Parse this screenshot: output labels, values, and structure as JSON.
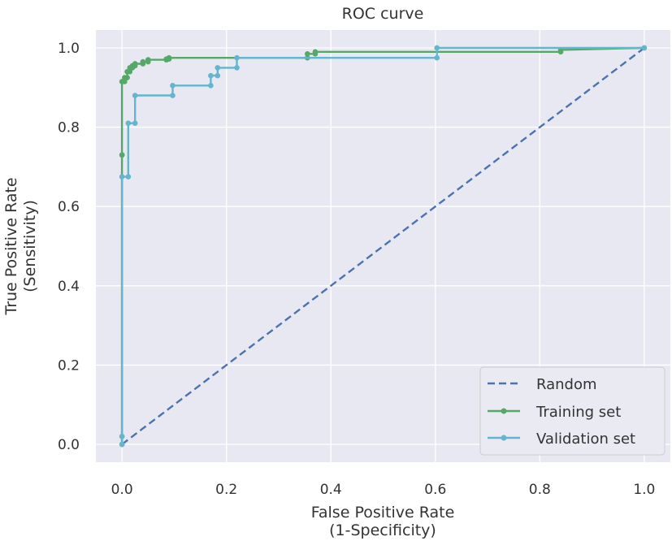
{
  "chart_data": {
    "type": "line",
    "title": "ROC curve",
    "xlabel": [
      "False Positive Rate",
      "(1-Specificity)"
    ],
    "ylabel": [
      "True Positive Rate",
      "(Sensitivity)"
    ],
    "xlim": [
      -0.05,
      1.05
    ],
    "ylim": [
      -0.045,
      1.045
    ],
    "xticks": [
      0.0,
      0.2,
      0.4,
      0.6,
      0.8,
      1.0
    ],
    "xtick_labels": [
      "0.0",
      "0.2",
      "0.4",
      "0.6",
      "0.8",
      "1.0"
    ],
    "yticks": [
      0.0,
      0.2,
      0.4,
      0.6,
      0.8,
      1.0
    ],
    "ytick_labels": [
      "0.0",
      "0.2",
      "0.4",
      "0.6",
      "0.8",
      "1.0"
    ],
    "grid": true,
    "background": "#e8e8f2",
    "legend_position": "lower-right",
    "series": [
      {
        "name": "Random",
        "style": "dashed",
        "markers": false,
        "color": "#4c72b0",
        "x": [
          0.0,
          1.0
        ],
        "y": [
          0.0,
          1.0
        ]
      },
      {
        "name": "Training set",
        "style": "solid",
        "markers": true,
        "color": "#55a868",
        "x": [
          0.0,
          0.0,
          0.0,
          0.0,
          0.005,
          0.005,
          0.01,
          0.01,
          0.015,
          0.015,
          0.02,
          0.02,
          0.025,
          0.025,
          0.04,
          0.04,
          0.05,
          0.05,
          0.085,
          0.085,
          0.09,
          0.09,
          0.355,
          0.355,
          0.37,
          0.37,
          0.84,
          0.84,
          1.0
        ],
        "y": [
          0.0,
          0.73,
          0.73,
          0.915,
          0.915,
          0.925,
          0.925,
          0.94,
          0.94,
          0.95,
          0.95,
          0.955,
          0.955,
          0.96,
          0.96,
          0.965,
          0.965,
          0.97,
          0.97,
          0.972,
          0.972,
          0.975,
          0.975,
          0.985,
          0.985,
          0.99,
          0.99,
          0.995,
          1.0
        ]
      },
      {
        "name": "Validation set",
        "style": "solid",
        "markers": true,
        "color": "#64b5cd",
        "x": [
          0.0,
          0.0,
          0.0,
          0.0,
          0.012,
          0.012,
          0.025,
          0.025,
          0.097,
          0.097,
          0.17,
          0.17,
          0.183,
          0.183,
          0.22,
          0.22,
          0.603,
          0.603,
          1.0
        ],
        "y": [
          0.0,
          0.02,
          0.02,
          0.675,
          0.675,
          0.81,
          0.81,
          0.88,
          0.88,
          0.905,
          0.905,
          0.93,
          0.93,
          0.95,
          0.95,
          0.975,
          0.975,
          1.0,
          1.0
        ]
      }
    ]
  }
}
